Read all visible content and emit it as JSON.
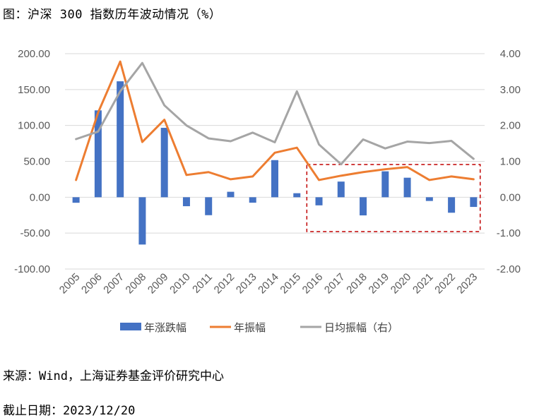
{
  "title": "图：沪深 300 指数历年波动情况（%）",
  "source": "来源：Wind，上海证券基金评价研究中心",
  "date": "截止日期：2023/12/20",
  "colors": {
    "bar": "#4472C4",
    "line1": "#ED7D31",
    "line2": "#A5A5A5",
    "highlight": "#C00000"
  },
  "chart_data": {
    "type": "bar+line",
    "categories": [
      "2005",
      "2006",
      "2007",
      "2008",
      "2009",
      "2010",
      "2011",
      "2012",
      "2013",
      "2014",
      "2015",
      "2016",
      "2017",
      "2018",
      "2019",
      "2020",
      "2021",
      "2022",
      "2023"
    ],
    "left_axis": {
      "ylim": [
        -100,
        200
      ],
      "ticks": [
        "200.00",
        "150.00",
        "100.00",
        "50.00",
        "0.00",
        "-50.00",
        "-100.00"
      ],
      "tick_values": [
        200,
        150,
        100,
        50,
        0,
        -50,
        -100
      ]
    },
    "right_axis": {
      "ylim": [
        -2,
        4
      ],
      "ticks": [
        "4.00",
        "3.00",
        "2.00",
        "1.00",
        "0.00",
        "-1.00",
        "-2.00"
      ],
      "tick_values": [
        4,
        3,
        2,
        1,
        0,
        -1,
        -2
      ]
    },
    "series": [
      {
        "name": "年涨跌幅",
        "kind": "bar",
        "axis": "left",
        "values": [
          -7.7,
          121.0,
          161.5,
          -65.9,
          96.7,
          -12.5,
          -25.0,
          7.6,
          -7.6,
          51.7,
          5.6,
          -11.3,
          21.8,
          -25.3,
          36.1,
          27.2,
          -5.2,
          -21.6,
          -13.5
        ]
      },
      {
        "name": "年振幅",
        "kind": "line",
        "axis": "left",
        "values": [
          24,
          118,
          189,
          77,
          108,
          31,
          35,
          25,
          29,
          62,
          69,
          24,
          30,
          35,
          39,
          42,
          24,
          29,
          25
        ]
      },
      {
        "name": "日均振幅（右）",
        "kind": "line",
        "axis": "right",
        "values": [
          1.62,
          1.83,
          2.95,
          3.74,
          2.56,
          2.0,
          1.64,
          1.56,
          1.8,
          1.53,
          2.95,
          1.47,
          0.92,
          1.61,
          1.36,
          1.55,
          1.51,
          1.57,
          1.07
        ]
      }
    ],
    "highlight_range": [
      "2016",
      "2023"
    ],
    "legend_position": "bottom"
  }
}
